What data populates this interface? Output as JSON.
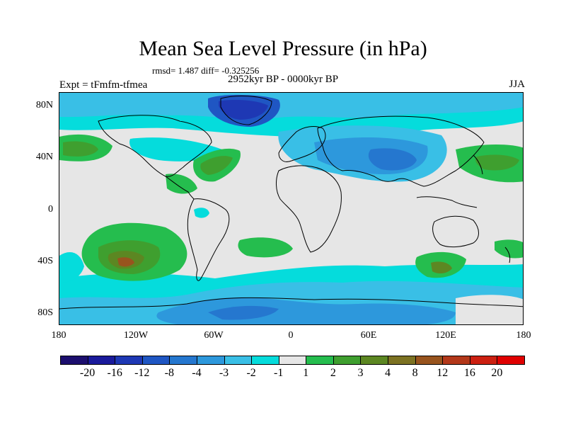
{
  "title": "Mean Sea Level Pressure (in hPa)",
  "stats": "rmsd= 1.487 diff= -0.325256",
  "period": "2952kyr BP - 0000kyr BP",
  "experiment": "Expt = tFmfm-tfmea",
  "season": "JJA",
  "lat_labels": [
    "80N",
    "40N",
    "0",
    "40S",
    "80S"
  ],
  "lon_labels": [
    "180",
    "120W",
    "60W",
    "0",
    "60E",
    "120E",
    "180"
  ],
  "legend": {
    "labels": [
      "-20",
      "-16",
      "-12",
      "-8",
      "-4",
      "-3",
      "-2",
      "-1",
      "1",
      "2",
      "3",
      "4",
      "8",
      "12",
      "16",
      "20"
    ],
    "colors": [
      "#1c0e6e",
      "#1a1a9b",
      "#1e38b4",
      "#1f56c3",
      "#2577cf",
      "#2d98dc",
      "#39bfe6",
      "#05dcdc",
      "#e6e6e6",
      "#25bd4e",
      "#3f9f2f",
      "#5c8722",
      "#7c7222",
      "#98541e",
      "#b3381a",
      "#cc2011",
      "#e00000"
    ]
  }
}
